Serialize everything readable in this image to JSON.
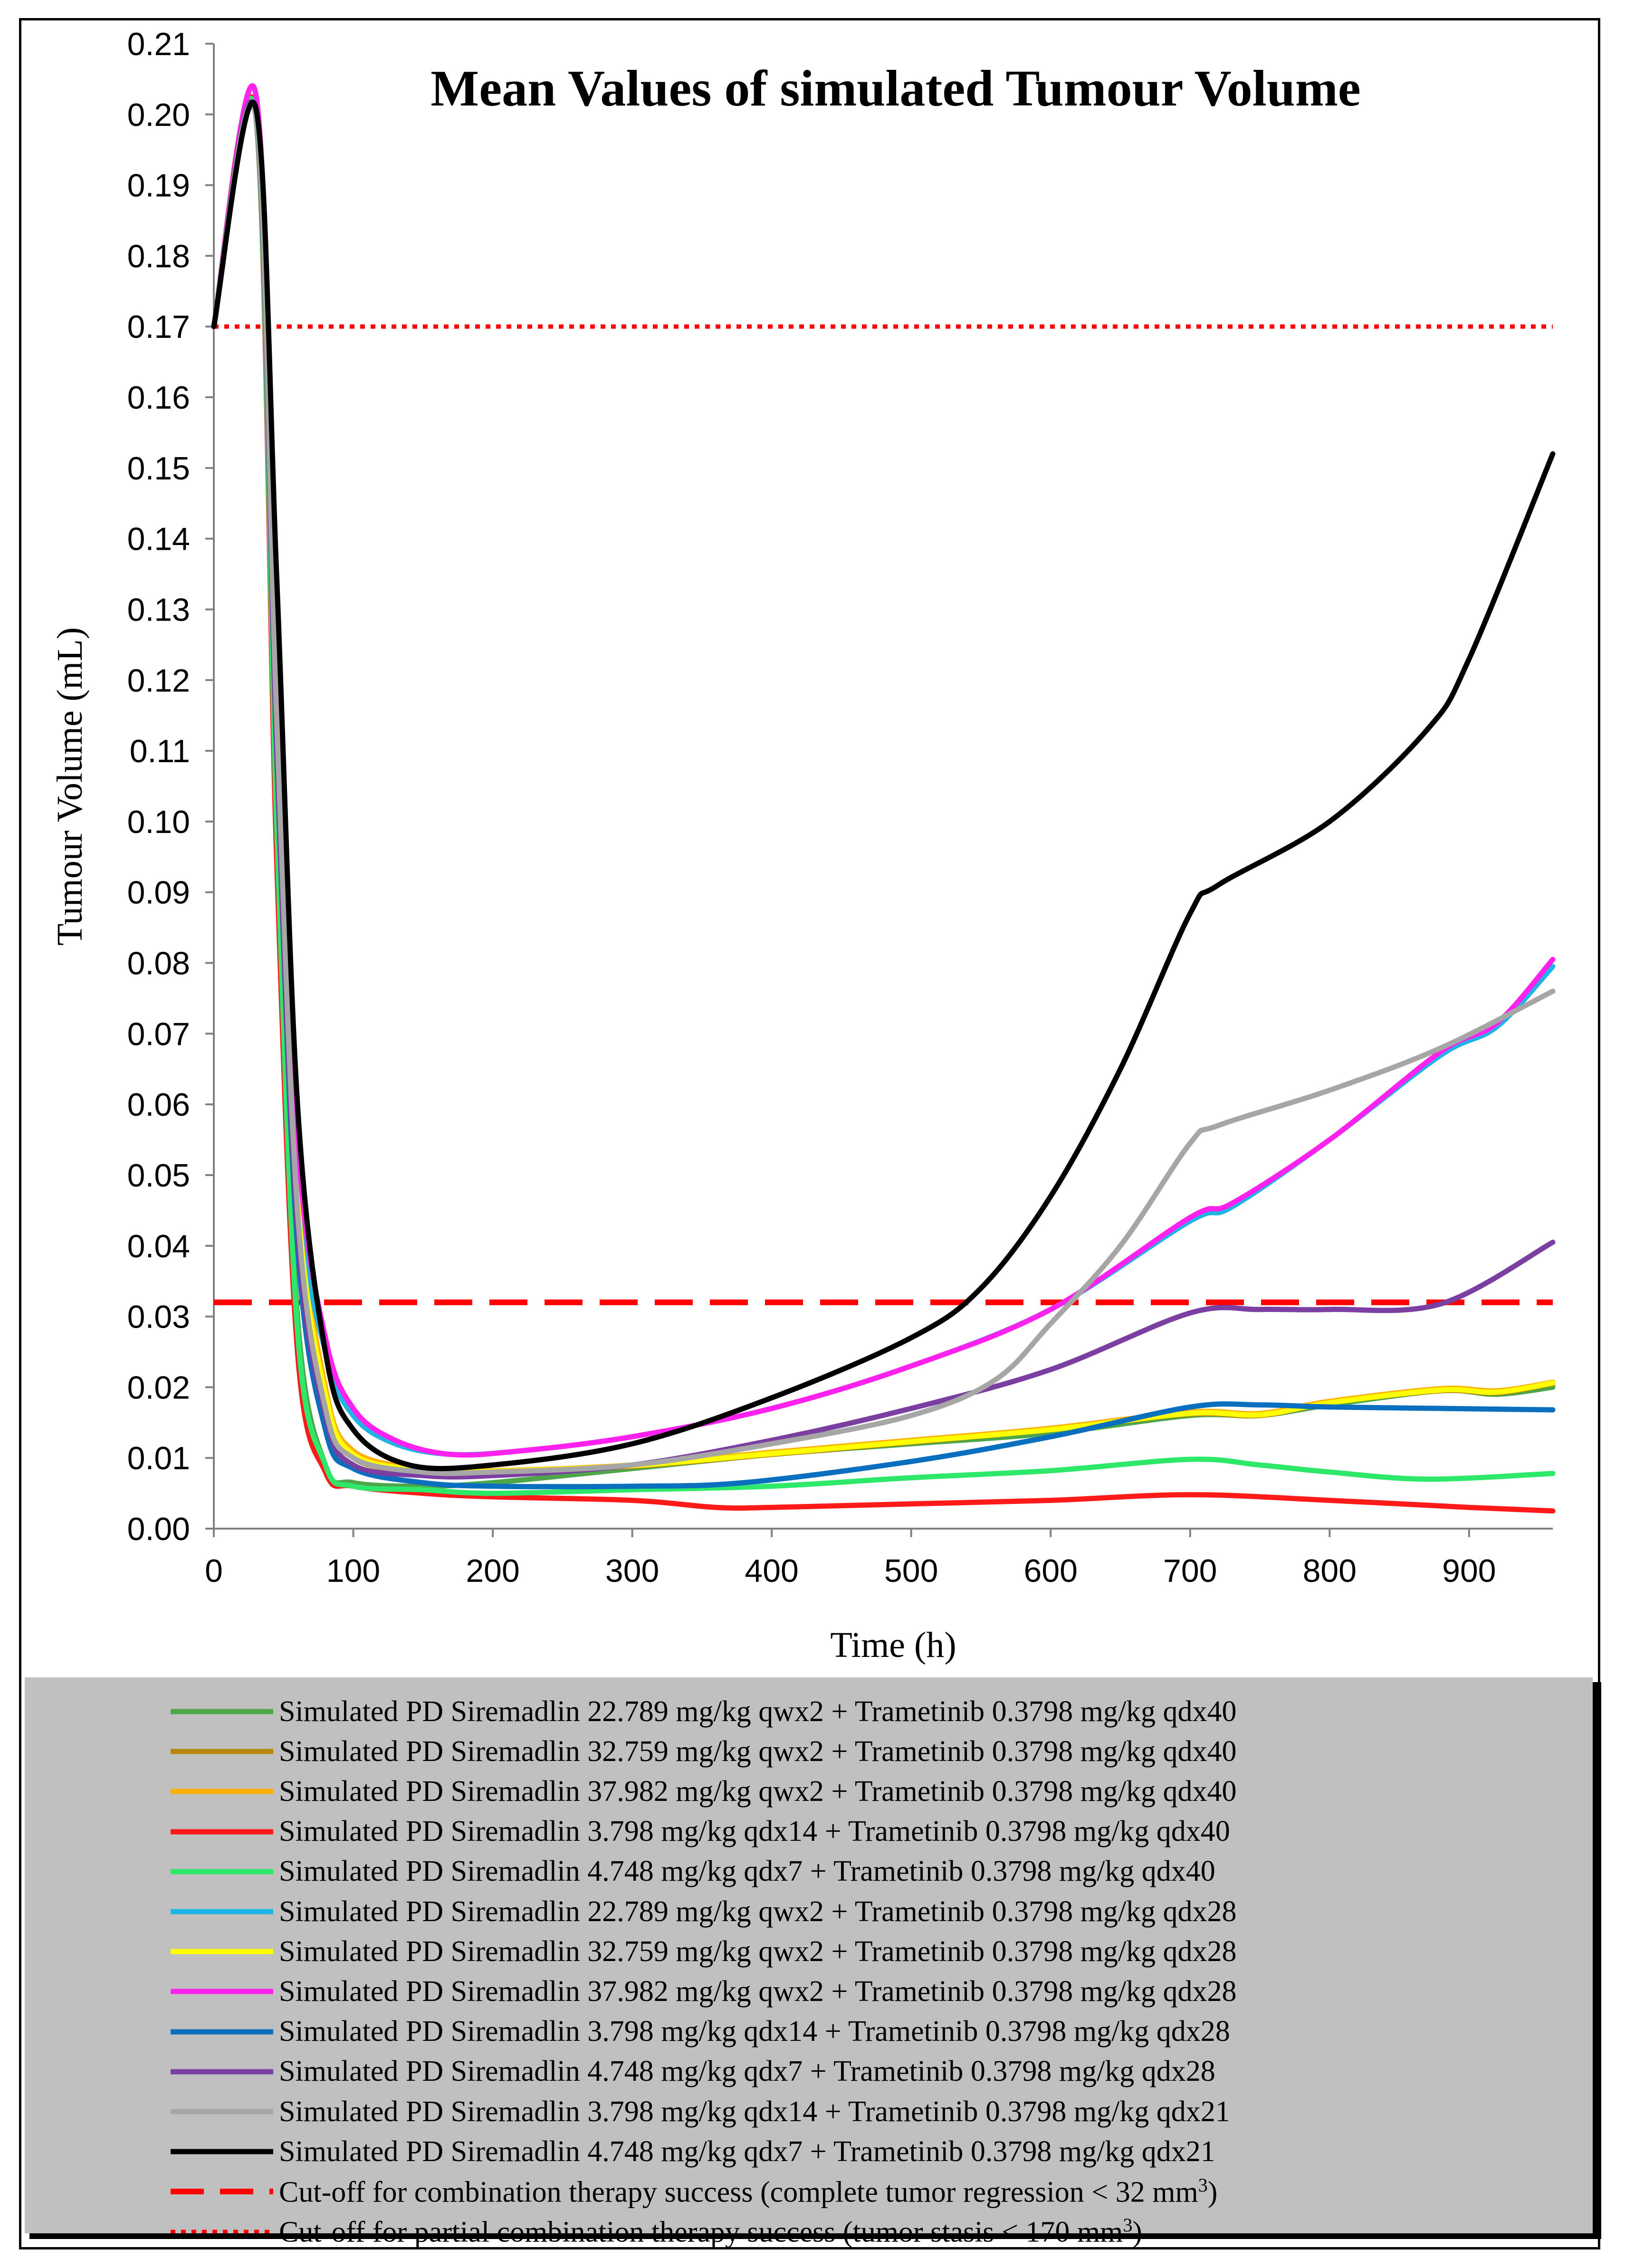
{
  "chart_data": {
    "type": "line",
    "title": "Mean Values of simulated Tumour Volume",
    "xlabel": "Time (h)",
    "ylabel": "Tumour Volume (mL)",
    "xlim": [
      0,
      960
    ],
    "ylim": [
      0,
      0.21
    ],
    "x_ticks": [
      0,
      100,
      200,
      300,
      400,
      500,
      600,
      700,
      800,
      900
    ],
    "x_tick_labels": [
      "0",
      "100",
      "200",
      "300",
      "400",
      "500",
      "600",
      "700",
      "800",
      "900"
    ],
    "y_ticks": [
      0,
      0.01,
      0.02,
      0.03,
      0.04,
      0.05,
      0.06,
      0.07,
      0.08,
      0.09,
      0.1,
      0.11,
      0.12,
      0.13,
      0.14,
      0.15,
      0.16,
      0.17,
      0.18,
      0.19,
      0.2,
      0.21
    ],
    "y_tick_labels": [
      "0.00",
      "0.01",
      "0.02",
      "0.03",
      "0.04",
      "0.05",
      "0.06",
      "0.07",
      "0.08",
      "0.09",
      "0.10",
      "0.11",
      "0.12",
      "0.13",
      "0.14",
      "0.15",
      "0.16",
      "0.17",
      "0.18",
      "0.19",
      "0.20",
      "0.21"
    ],
    "series": [
      {
        "name": "Simulated PD Siremadlin 22.789 mg/kg qwx2 + Trametinib 0.3798 mg/kg qdx40",
        "color": "#4ea64a",
        "points": [
          [
            0,
            0.17
          ],
          [
            30,
            0.2
          ],
          [
            45,
            0.1
          ],
          [
            60,
            0.03
          ],
          [
            80,
            0.009
          ],
          [
            100,
            0.0065
          ],
          [
            150,
            0.006
          ],
          [
            200,
            0.0065
          ],
          [
            300,
            0.0085
          ],
          [
            400,
            0.0105
          ],
          [
            500,
            0.012
          ],
          [
            600,
            0.0135
          ],
          [
            700,
            0.016
          ],
          [
            750,
            0.016
          ],
          [
            800,
            0.0175
          ],
          [
            880,
            0.0195
          ],
          [
            920,
            0.019
          ],
          [
            960,
            0.02
          ]
        ]
      },
      {
        "name": "Simulated PD Siremadlin 32.759 mg/kg qwx2 + Trametinib 0.3798 mg/kg qdx40",
        "color": "#b8860b",
        "points": [
          [
            0,
            0.17
          ],
          [
            30,
            0.2
          ],
          [
            45,
            0.11
          ],
          [
            60,
            0.045
          ],
          [
            80,
            0.018
          ],
          [
            100,
            0.01
          ],
          [
            150,
            0.008
          ],
          [
            200,
            0.008
          ],
          [
            300,
            0.0088
          ],
          [
            400,
            0.0105
          ],
          [
            500,
            0.0122
          ],
          [
            600,
            0.014
          ],
          [
            700,
            0.0162
          ],
          [
            750,
            0.016
          ],
          [
            800,
            0.0178
          ],
          [
            880,
            0.0195
          ],
          [
            920,
            0.0192
          ],
          [
            960,
            0.0205
          ]
        ]
      },
      {
        "name": "Simulated PD Siremadlin 37.982 mg/kg qwx2 + Trametinib 0.3798 mg/kg qdx40",
        "color": "#ffb000",
        "points": [
          [
            0,
            0.17
          ],
          [
            30,
            0.2
          ],
          [
            45,
            0.12
          ],
          [
            60,
            0.05
          ],
          [
            80,
            0.02
          ],
          [
            100,
            0.011
          ],
          [
            150,
            0.0085
          ],
          [
            200,
            0.0082
          ],
          [
            300,
            0.009
          ],
          [
            400,
            0.0108
          ],
          [
            500,
            0.0125
          ],
          [
            600,
            0.0142
          ],
          [
            700,
            0.0165
          ],
          [
            750,
            0.0163
          ],
          [
            800,
            0.018
          ],
          [
            880,
            0.0198
          ],
          [
            920,
            0.0195
          ],
          [
            960,
            0.0207
          ]
        ]
      },
      {
        "name": "Simulated PD Siremadlin 3.798 mg/kg qdx14 + Trametinib 0.3798 mg/kg qdx40",
        "color": "#ff1a1a",
        "points": [
          [
            0,
            0.17
          ],
          [
            30,
            0.2
          ],
          [
            45,
            0.095
          ],
          [
            60,
            0.025
          ],
          [
            80,
            0.008
          ],
          [
            100,
            0.006
          ],
          [
            150,
            0.005
          ],
          [
            200,
            0.0045
          ],
          [
            300,
            0.004
          ],
          [
            360,
            0.003
          ],
          [
            400,
            0.003
          ],
          [
            500,
            0.0035
          ],
          [
            600,
            0.004
          ],
          [
            700,
            0.0048
          ],
          [
            800,
            0.004
          ],
          [
            900,
            0.003
          ],
          [
            960,
            0.0025
          ]
        ]
      },
      {
        "name": "Simulated PD Siremadlin 4.748 mg/kg qdx7  + Trametinib 0.3798 mg/kg qdx40",
        "color": "#2ee86a",
        "points": [
          [
            0,
            0.17
          ],
          [
            30,
            0.2
          ],
          [
            45,
            0.1
          ],
          [
            60,
            0.028
          ],
          [
            80,
            0.009
          ],
          [
            100,
            0.006
          ],
          [
            150,
            0.0055
          ],
          [
            200,
            0.005
          ],
          [
            300,
            0.0055
          ],
          [
            400,
            0.006
          ],
          [
            500,
            0.0072
          ],
          [
            600,
            0.0082
          ],
          [
            700,
            0.0098
          ],
          [
            750,
            0.009
          ],
          [
            800,
            0.008
          ],
          [
            870,
            0.007
          ],
          [
            960,
            0.0078
          ]
        ]
      },
      {
        "name": "Simulated PD Siremadlin 22.789 mg/kg qwx2 + Trametinib 0.3798 mg/kg qdx28",
        "color": "#1fb4e6",
        "points": [
          [
            0,
            0.17
          ],
          [
            30,
            0.2
          ],
          [
            45,
            0.12
          ],
          [
            60,
            0.05
          ],
          [
            80,
            0.025
          ],
          [
            100,
            0.016
          ],
          [
            130,
            0.012
          ],
          [
            170,
            0.0105
          ],
          [
            220,
            0.011
          ],
          [
            300,
            0.013
          ],
          [
            400,
            0.017
          ],
          [
            500,
            0.023
          ],
          [
            600,
            0.031
          ],
          [
            700,
            0.0435
          ],
          [
            730,
            0.0455
          ],
          [
            800,
            0.055
          ],
          [
            880,
            0.067
          ],
          [
            920,
            0.071
          ],
          [
            960,
            0.0795
          ]
        ]
      },
      {
        "name": "Simulated PD Siremadlin 32.759 mg/kg qwx2 + Trametinib 0.3798 mg/kg qdx28",
        "color": "#ffff00",
        "points": [
          [
            0,
            0.17
          ],
          [
            30,
            0.2
          ],
          [
            45,
            0.115
          ],
          [
            60,
            0.047
          ],
          [
            80,
            0.019
          ],
          [
            100,
            0.0105
          ],
          [
            150,
            0.0083
          ],
          [
            200,
            0.0081
          ],
          [
            300,
            0.0089
          ],
          [
            400,
            0.0106
          ],
          [
            500,
            0.0123
          ],
          [
            600,
            0.014
          ],
          [
            700,
            0.0163
          ],
          [
            750,
            0.0161
          ],
          [
            800,
            0.0178
          ],
          [
            880,
            0.0196
          ],
          [
            920,
            0.0193
          ],
          [
            960,
            0.0206
          ]
        ]
      },
      {
        "name": "Simulated PD Siremadlin 37.982 mg/kg qwx2 + Trametinib 0.3798 mg/kg qdx28",
        "color": "#ff22ee",
        "points": [
          [
            0,
            0.17
          ],
          [
            30,
            0.203
          ],
          [
            45,
            0.125
          ],
          [
            60,
            0.055
          ],
          [
            80,
            0.027
          ],
          [
            100,
            0.017
          ],
          [
            130,
            0.0125
          ],
          [
            170,
            0.0105
          ],
          [
            220,
            0.011
          ],
          [
            300,
            0.013
          ],
          [
            400,
            0.017
          ],
          [
            500,
            0.023
          ],
          [
            600,
            0.031
          ],
          [
            700,
            0.044
          ],
          [
            730,
            0.046
          ],
          [
            800,
            0.055
          ],
          [
            880,
            0.0675
          ],
          [
            920,
            0.0715
          ],
          [
            960,
            0.0805
          ]
        ]
      },
      {
        "name": "Simulated PD Siremadlin 3.798 mg/kg qdx14 + Trametinib 0.3798 mg/kg qdx28",
        "color": "#0b6fbf",
        "points": [
          [
            0,
            0.17
          ],
          [
            30,
            0.2
          ],
          [
            45,
            0.11
          ],
          [
            60,
            0.04
          ],
          [
            80,
            0.014
          ],
          [
            100,
            0.0085
          ],
          [
            150,
            0.0065
          ],
          [
            200,
            0.006
          ],
          [
            300,
            0.006
          ],
          [
            380,
            0.0065
          ],
          [
            500,
            0.0095
          ],
          [
            600,
            0.013
          ],
          [
            700,
            0.0172
          ],
          [
            750,
            0.0175
          ],
          [
            800,
            0.0172
          ],
          [
            880,
            0.017
          ],
          [
            960,
            0.0168
          ]
        ]
      },
      {
        "name": "Simulated PD Siremadlin 4.748 mg/kg qdx7 + Trametinib 0.3798 mg/kg qdx28",
        "color": "#7a3fa0",
        "points": [
          [
            0,
            0.17
          ],
          [
            30,
            0.2
          ],
          [
            45,
            0.11
          ],
          [
            60,
            0.042
          ],
          [
            80,
            0.016
          ],
          [
            100,
            0.009
          ],
          [
            150,
            0.0075
          ],
          [
            200,
            0.0075
          ],
          [
            300,
            0.009
          ],
          [
            400,
            0.0125
          ],
          [
            500,
            0.017
          ],
          [
            600,
            0.0225
          ],
          [
            700,
            0.0305
          ],
          [
            750,
            0.031
          ],
          [
            800,
            0.031
          ],
          [
            880,
            0.0318
          ],
          [
            960,
            0.0405
          ]
        ]
      },
      {
        "name": "Simulated PD Siremadlin 3.798 mg/kg qdx14 + Trametinib 0.3798 mg/kg qdx21",
        "color": "#a6a6a6",
        "points": [
          [
            0,
            0.17
          ],
          [
            30,
            0.2
          ],
          [
            45,
            0.115
          ],
          [
            60,
            0.045
          ],
          [
            80,
            0.017
          ],
          [
            100,
            0.01
          ],
          [
            150,
            0.008
          ],
          [
            200,
            0.008
          ],
          [
            300,
            0.009
          ],
          [
            400,
            0.012
          ],
          [
            500,
            0.016
          ],
          [
            560,
            0.021
          ],
          [
            600,
            0.029
          ],
          [
            650,
            0.04
          ],
          [
            700,
            0.0545
          ],
          [
            720,
            0.057
          ],
          [
            800,
            0.062
          ],
          [
            880,
            0.068
          ],
          [
            960,
            0.076
          ]
        ]
      },
      {
        "name": "Simulated PD Siremadlin 4.748 mg/kg qdx7 + Trametinib 0.3798 mg/kg qdx21",
        "color": "#000000",
        "points": [
          [
            0,
            0.17
          ],
          [
            30,
            0.201
          ],
          [
            45,
            0.135
          ],
          [
            60,
            0.06
          ],
          [
            80,
            0.025
          ],
          [
            100,
            0.014
          ],
          [
            140,
            0.009
          ],
          [
            200,
            0.009
          ],
          [
            300,
            0.012
          ],
          [
            400,
            0.0185
          ],
          [
            500,
            0.027
          ],
          [
            550,
            0.034
          ],
          [
            600,
            0.047
          ],
          [
            650,
            0.065
          ],
          [
            700,
            0.087
          ],
          [
            720,
            0.091
          ],
          [
            800,
            0.1
          ],
          [
            870,
            0.113
          ],
          [
            900,
            0.123
          ],
          [
            960,
            0.152
          ]
        ]
      }
    ],
    "reference_lines": [
      {
        "name": "Cut-off for combination therapy success (complete tumor regression < 32 mm",
        "sup": "3",
        "close": ")",
        "value": 0.032,
        "color": "#ff0000",
        "style": "dashed"
      },
      {
        "name": "Cut-off for partial combination therapy success (tumor stasis < 170 mm",
        "sup": "3",
        "close": ")",
        "value": 0.17,
        "color": "#ff0000",
        "style": "dotted"
      }
    ]
  }
}
